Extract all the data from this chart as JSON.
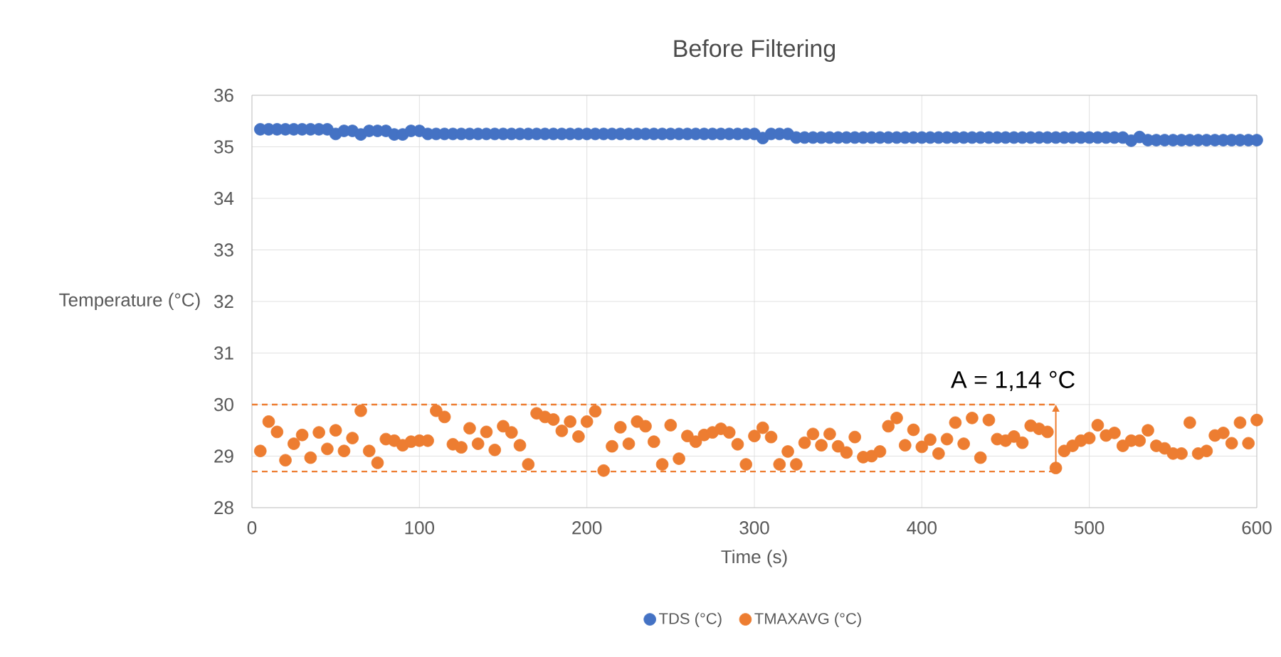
{
  "chart_data": {
    "type": "scatter",
    "title": "Before Filtering",
    "xlabel": "Time (s)",
    "ylabel": "Temperature (°C)",
    "x": [
      5,
      10,
      15,
      20,
      25,
      30,
      35,
      40,
      45,
      50,
      55,
      60,
      65,
      70,
      75,
      80,
      85,
      90,
      95,
      100,
      105,
      110,
      115,
      120,
      125,
      130,
      135,
      140,
      145,
      150,
      155,
      160,
      165,
      170,
      175,
      180,
      185,
      190,
      195,
      200,
      205,
      210,
      215,
      220,
      225,
      230,
      235,
      240,
      245,
      250,
      255,
      260,
      265,
      270,
      275,
      280,
      285,
      290,
      295,
      300,
      305,
      310,
      315,
      320,
      325,
      330,
      335,
      340,
      345,
      350,
      355,
      360,
      365,
      370,
      375,
      380,
      385,
      390,
      395,
      400,
      405,
      410,
      415,
      420,
      425,
      430,
      435,
      440,
      445,
      450,
      455,
      460,
      465,
      470,
      475,
      480,
      485,
      490,
      495,
      500,
      505,
      510,
      515,
      520,
      525,
      530,
      535,
      540,
      545,
      550,
      555,
      560,
      565,
      570,
      575,
      580,
      585,
      590,
      595,
      600
    ],
    "series": [
      {
        "name": "TDS (°C)",
        "color": "#4472c4",
        "values": [
          35.34,
          35.34,
          35.34,
          35.34,
          35.34,
          35.34,
          35.34,
          35.34,
          35.34,
          35.25,
          35.31,
          35.31,
          35.24,
          35.31,
          35.31,
          35.31,
          35.24,
          35.24,
          35.31,
          35.31,
          35.25,
          35.25,
          35.25,
          35.25,
          35.25,
          35.25,
          35.25,
          35.25,
          35.25,
          35.25,
          35.25,
          35.25,
          35.25,
          35.25,
          35.25,
          35.25,
          35.25,
          35.25,
          35.25,
          35.25,
          35.25,
          35.25,
          35.25,
          35.25,
          35.25,
          35.25,
          35.25,
          35.25,
          35.25,
          35.25,
          35.25,
          35.25,
          35.25,
          35.25,
          35.25,
          35.25,
          35.25,
          35.25,
          35.25,
          35.25,
          35.17,
          35.25,
          35.25,
          35.25,
          35.18,
          35.18,
          35.18,
          35.18,
          35.18,
          35.18,
          35.18,
          35.18,
          35.18,
          35.18,
          35.18,
          35.18,
          35.18,
          35.18,
          35.18,
          35.18,
          35.18,
          35.18,
          35.18,
          35.18,
          35.18,
          35.18,
          35.18,
          35.18,
          35.18,
          35.18,
          35.18,
          35.18,
          35.18,
          35.18,
          35.18,
          35.18,
          35.18,
          35.18,
          35.18,
          35.18,
          35.18,
          35.18,
          35.18,
          35.18,
          35.12,
          35.19,
          35.13,
          35.13,
          35.13,
          35.13,
          35.13,
          35.13,
          35.13,
          35.13,
          35.13,
          35.13,
          35.13,
          35.13,
          35.13,
          35.13
        ]
      },
      {
        "name": "TMAXAVG (°C)",
        "color": "#ed7d31",
        "values": [
          29.1,
          29.67,
          29.47,
          28.92,
          29.24,
          29.41,
          28.97,
          29.46,
          29.14,
          29.5,
          29.1,
          29.35,
          29.88,
          29.1,
          28.87,
          29.33,
          29.3,
          29.21,
          29.28,
          29.3,
          29.3,
          29.88,
          29.76,
          29.23,
          29.17,
          29.54,
          29.24,
          29.47,
          29.12,
          29.58,
          29.46,
          29.21,
          28.84,
          29.83,
          29.76,
          29.71,
          29.49,
          29.67,
          29.38,
          29.67,
          29.87,
          28.72,
          29.19,
          29.56,
          29.24,
          29.67,
          29.58,
          29.28,
          28.84,
          29.6,
          28.95,
          29.39,
          29.28,
          29.41,
          29.46,
          29.53,
          29.46,
          29.23,
          28.84,
          29.39,
          29.55,
          29.37,
          28.84,
          29.09,
          28.84,
          29.26,
          29.43,
          29.21,
          29.43,
          29.19,
          29.07,
          29.37,
          28.98,
          29.0,
          29.09,
          29.58,
          29.74,
          29.21,
          29.51,
          29.18,
          29.32,
          29.05,
          29.33,
          29.65,
          29.24,
          29.74,
          28.97,
          29.7,
          29.33,
          29.3,
          29.38,
          29.26,
          29.59,
          29.53,
          29.47,
          28.77,
          29.1,
          29.2,
          29.3,
          29.35,
          29.6,
          29.4,
          29.45,
          29.2,
          29.3,
          29.3,
          29.5,
          29.2,
          29.15,
          29.05,
          29.05,
          29.65,
          29.05,
          29.1,
          29.4,
          29.45,
          29.25,
          29.65,
          29.25,
          29.7
        ]
      }
    ],
    "xlim": [
      0,
      600
    ],
    "xticks": [
      0,
      100,
      200,
      300,
      400,
      500,
      600
    ],
    "ylim": [
      28,
      36
    ],
    "yticks": [
      28,
      29,
      30,
      31,
      32,
      33,
      34,
      35,
      36
    ],
    "ref_lines": [
      {
        "axis": "y",
        "value": 30.0,
        "color": "#ed7d31",
        "line_style": "dashed"
      },
      {
        "axis": "y",
        "value": 28.7,
        "color": "#ed7d31",
        "line_style": "dashed"
      }
    ],
    "annotations": [
      {
        "text": "A = 1,14 °C",
        "x": 480,
        "y": 30.0
      }
    ],
    "grid": true,
    "legend": "bottom",
    "marker": "circle"
  }
}
